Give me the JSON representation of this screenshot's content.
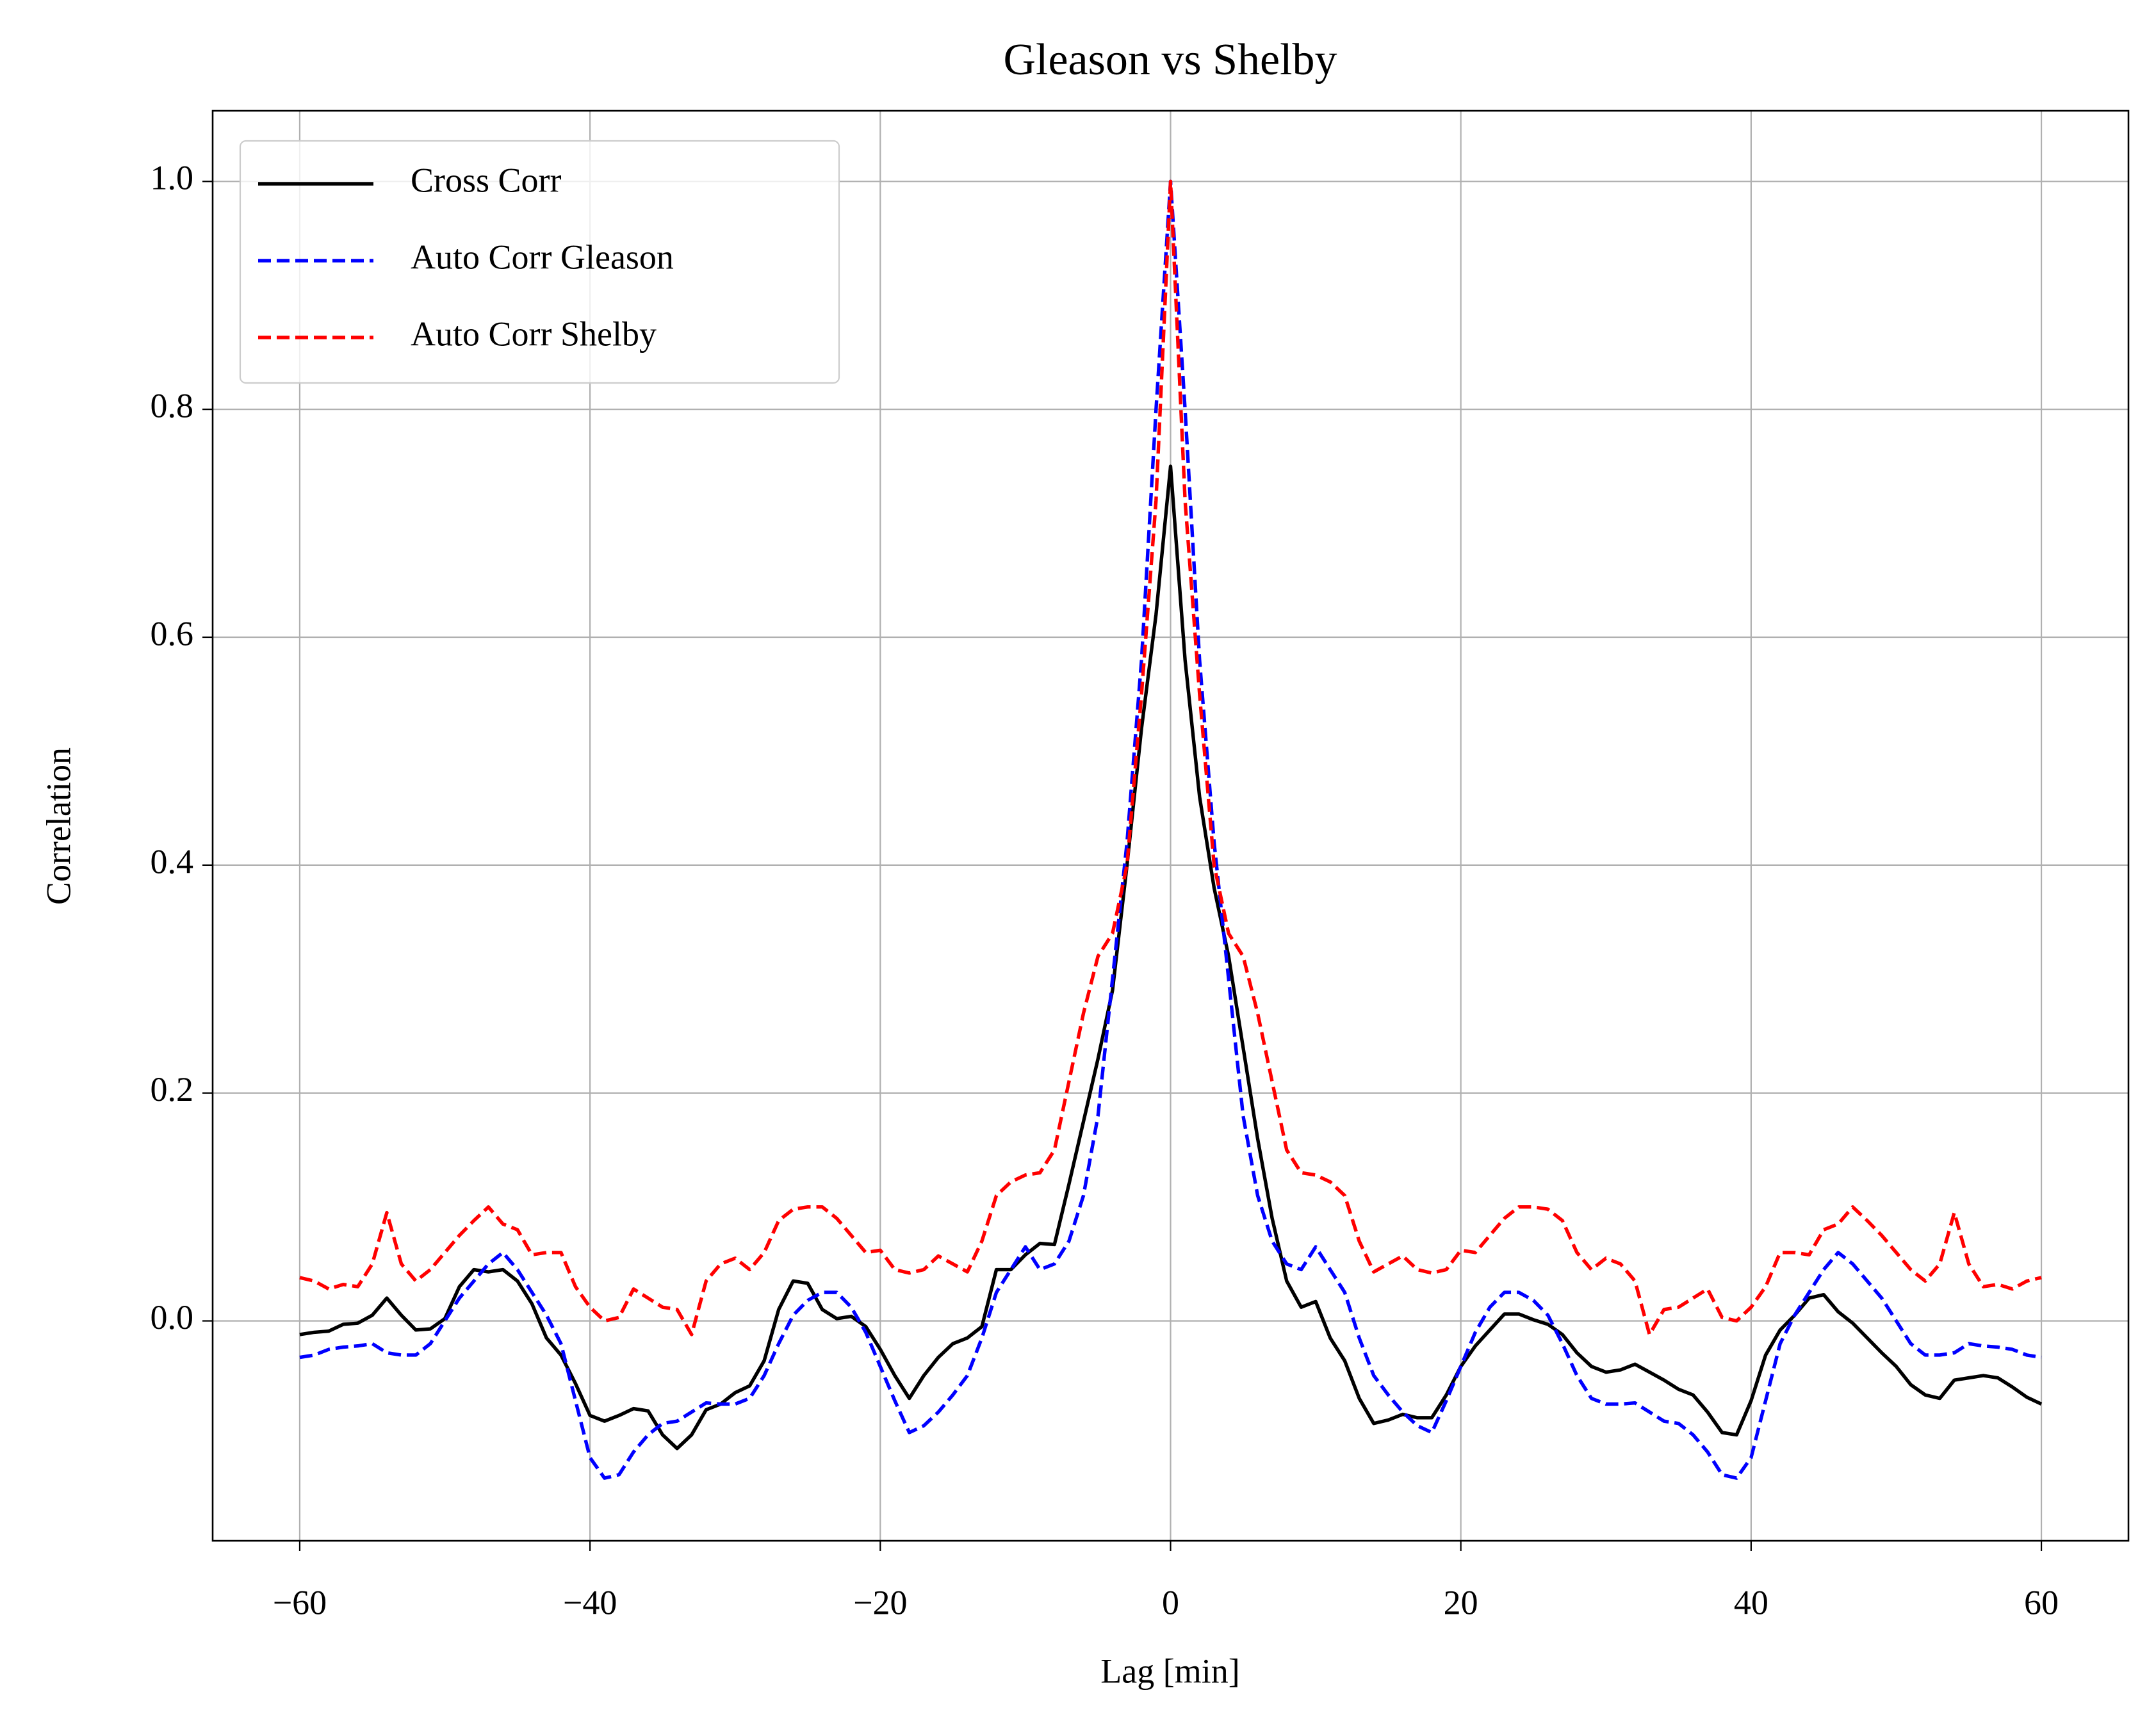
{
  "chart_data": {
    "type": "line",
    "title": "Gleason vs Shelby",
    "x_label": "Lag [min]",
    "y_label": "Correlation",
    "x": [
      -60,
      -59,
      -58,
      -57,
      -56,
      -55,
      -54,
      -53,
      -52,
      -51,
      -50,
      -49,
      -48,
      -47,
      -46,
      -45,
      -44,
      -43,
      -42,
      -41,
      -40,
      -39,
      -38,
      -37,
      -36,
      -35,
      -34,
      -33,
      -32,
      -31,
      -30,
      -29,
      -28,
      -27,
      -26,
      -25,
      -24,
      -23,
      -22,
      -21,
      -20,
      -19,
      -18,
      -17,
      -16,
      -15,
      -14,
      -13,
      -12,
      -11,
      -10,
      -9,
      -8,
      -7,
      -6,
      -5,
      -4,
      -3,
      -2,
      -1,
      0,
      1,
      2,
      3,
      4,
      5,
      6,
      7,
      8,
      9,
      10,
      11,
      12,
      13,
      14,
      15,
      16,
      17,
      18,
      19,
      20,
      21,
      22,
      23,
      24,
      25,
      26,
      27,
      28,
      29,
      30,
      31,
      32,
      33,
      34,
      35,
      36,
      37,
      38,
      39,
      40,
      41,
      42,
      43,
      44,
      45,
      46,
      47,
      48,
      49,
      50,
      51,
      52,
      53,
      54,
      55,
      56,
      57,
      58,
      59,
      60
    ],
    "series": [
      {
        "name": "Cross Corr",
        "color": "#000000",
        "dash": false,
        "values": [
          -0.012,
          -0.01,
          -0.009,
          -0.003,
          -0.002,
          0.005,
          0.02,
          0.005,
          -0.008,
          -0.007,
          0.002,
          0.03,
          0.045,
          0.043,
          0.045,
          0.035,
          0.015,
          -0.015,
          -0.03,
          -0.055,
          -0.083,
          -0.088,
          -0.083,
          -0.077,
          -0.079,
          -0.1,
          -0.112,
          -0.1,
          -0.078,
          -0.073,
          -0.063,
          -0.057,
          -0.035,
          0.01,
          0.035,
          0.033,
          0.01,
          0.002,
          0.004,
          -0.005,
          -0.025,
          -0.048,
          -0.068,
          -0.048,
          -0.032,
          -0.02,
          -0.015,
          -0.005,
          0.045,
          0.045,
          0.058,
          0.068,
          0.067,
          0.12,
          0.175,
          0.23,
          0.29,
          0.4,
          0.52,
          0.62,
          0.75,
          0.58,
          0.46,
          0.38,
          0.32,
          0.24,
          0.16,
          0.09,
          0.035,
          0.012,
          0.017,
          -0.015,
          -0.035,
          -0.068,
          -0.09,
          -0.087,
          -0.082,
          -0.085,
          -0.085,
          -0.065,
          -0.04,
          -0.022,
          -0.008,
          0.006,
          0.006,
          0.001,
          -0.003,
          -0.012,
          -0.028,
          -0.04,
          -0.045,
          -0.043,
          -0.038,
          -0.045,
          -0.052,
          -0.06,
          -0.065,
          -0.08,
          -0.098,
          -0.1,
          -0.07,
          -0.03,
          -0.008,
          0.005,
          0.02,
          0.023,
          0.008,
          -0.002,
          -0.015,
          -0.028,
          -0.04,
          -0.056,
          -0.065,
          -0.068,
          -0.052,
          -0.05,
          -0.048,
          -0.05,
          -0.058,
          -0.067,
          -0.073
        ]
      },
      {
        "name": "Auto Corr Gleason",
        "color": "#0000ff",
        "dash": true,
        "values": [
          -0.032,
          -0.03,
          -0.025,
          -0.023,
          -0.022,
          -0.02,
          -0.028,
          -0.03,
          -0.03,
          -0.02,
          0.0,
          0.02,
          0.035,
          0.05,
          0.06,
          0.045,
          0.025,
          0.005,
          -0.02,
          -0.07,
          -0.12,
          -0.138,
          -0.135,
          -0.115,
          -0.1,
          -0.09,
          -0.088,
          -0.08,
          -0.072,
          -0.073,
          -0.073,
          -0.068,
          -0.048,
          -0.02,
          0.005,
          0.018,
          0.025,
          0.025,
          0.012,
          -0.01,
          -0.04,
          -0.07,
          -0.098,
          -0.092,
          -0.08,
          -0.065,
          -0.048,
          -0.015,
          0.025,
          0.045,
          0.065,
          0.045,
          0.05,
          0.07,
          0.11,
          0.18,
          0.3,
          0.42,
          0.58,
          0.8,
          1.0,
          0.8,
          0.58,
          0.42,
          0.3,
          0.18,
          0.11,
          0.07,
          0.05,
          0.045,
          0.065,
          0.045,
          0.025,
          -0.015,
          -0.048,
          -0.065,
          -0.08,
          -0.092,
          -0.098,
          -0.07,
          -0.04,
          -0.01,
          0.012,
          0.025,
          0.025,
          0.018,
          0.005,
          -0.02,
          -0.048,
          -0.068,
          -0.073,
          -0.073,
          -0.072,
          -0.08,
          -0.088,
          -0.09,
          -0.1,
          -0.115,
          -0.135,
          -0.138,
          -0.12,
          -0.07,
          -0.02,
          0.005,
          0.025,
          0.045,
          0.06,
          0.05,
          0.035,
          0.02,
          0.0,
          -0.02,
          -0.03,
          -0.03,
          -0.028,
          -0.02,
          -0.022,
          -0.023,
          -0.025,
          -0.03,
          -0.032
        ]
      },
      {
        "name": "Auto Corr Shelby",
        "color": "#ff0000",
        "dash": true,
        "values": [
          0.038,
          0.035,
          0.028,
          0.032,
          0.03,
          0.05,
          0.095,
          0.05,
          0.035,
          0.045,
          0.06,
          0.075,
          0.088,
          0.1,
          0.085,
          0.08,
          0.058,
          0.06,
          0.06,
          0.03,
          0.012,
          0.0,
          0.003,
          0.028,
          0.02,
          0.012,
          0.01,
          -0.012,
          0.035,
          0.05,
          0.055,
          0.045,
          0.06,
          0.088,
          0.098,
          0.1,
          0.1,
          0.09,
          0.075,
          0.06,
          0.062,
          0.045,
          0.042,
          0.045,
          0.057,
          0.05,
          0.043,
          0.07,
          0.11,
          0.122,
          0.128,
          0.13,
          0.15,
          0.21,
          0.27,
          0.32,
          0.34,
          0.4,
          0.55,
          0.72,
          1.0,
          0.72,
          0.55,
          0.4,
          0.34,
          0.32,
          0.27,
          0.21,
          0.15,
          0.13,
          0.128,
          0.122,
          0.11,
          0.07,
          0.043,
          0.05,
          0.057,
          0.045,
          0.042,
          0.045,
          0.062,
          0.06,
          0.075,
          0.09,
          0.1,
          0.1,
          0.098,
          0.088,
          0.06,
          0.045,
          0.055,
          0.05,
          0.035,
          -0.012,
          0.01,
          0.012,
          0.02,
          0.028,
          0.003,
          0.0,
          0.012,
          0.03,
          0.06,
          0.06,
          0.058,
          0.08,
          0.085,
          0.1,
          0.088,
          0.075,
          0.06,
          0.045,
          0.035,
          0.05,
          0.095,
          0.05,
          0.03,
          0.032,
          0.028,
          0.035,
          0.038
        ]
      }
    ],
    "xlim": [
      -66,
      66
    ],
    "ylim": [
      -0.193,
      1.062
    ],
    "xticks": [
      {
        "value": -60,
        "label": "−60"
      },
      {
        "value": -40,
        "label": "−40"
      },
      {
        "value": -20,
        "label": "−20"
      },
      0,
      20,
      40,
      60
    ],
    "yticks": [
      {
        "value": 0,
        "label": "0.0"
      },
      0.2,
      0.4,
      0.6,
      0.8,
      {
        "value": 1,
        "label": "1.0"
      }
    ],
    "grid": true,
    "legend": "upper left"
  }
}
